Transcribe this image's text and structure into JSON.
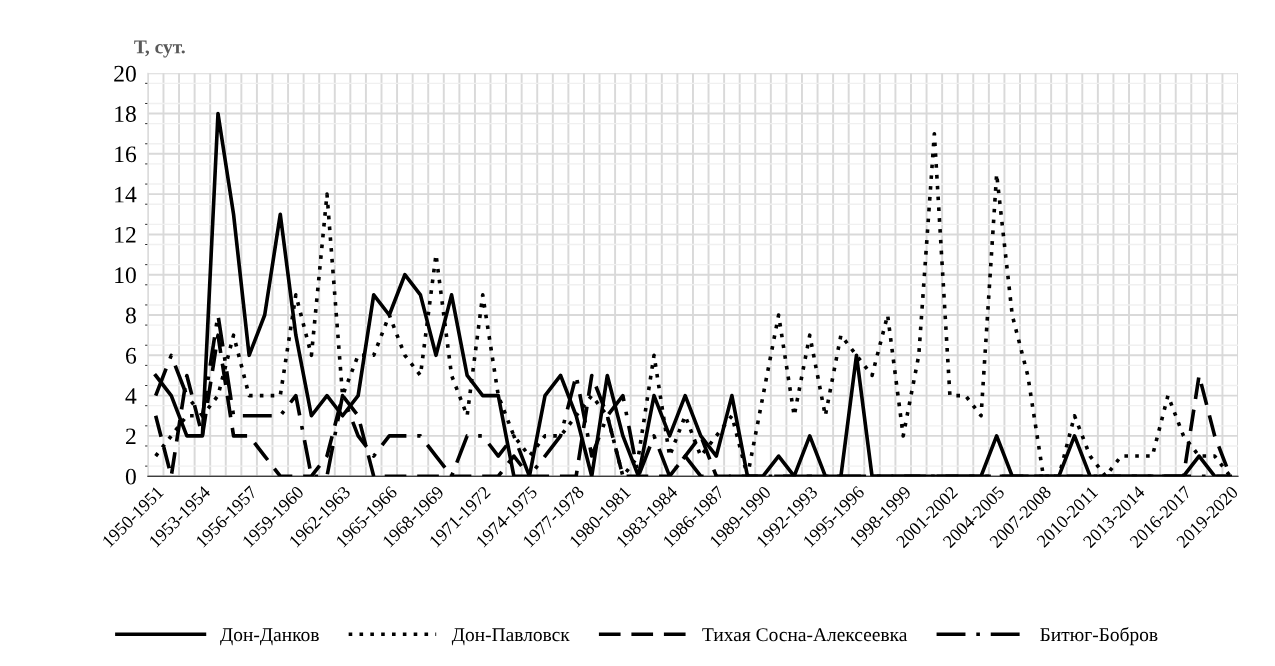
{
  "chart_data": {
    "type": "line",
    "ylabel": "Т, сут.",
    "categories": [
      "1950-1951",
      null,
      null,
      "1953-1954",
      null,
      null,
      "1956-1957",
      null,
      null,
      "1959-1960",
      null,
      null,
      "1962-1963",
      null,
      null,
      "1965-1966",
      null,
      null,
      "1968-1969",
      null,
      null,
      "1971-1972",
      null,
      null,
      "1974-1975",
      null,
      null,
      "1977-1978",
      null,
      null,
      "1980-1981",
      null,
      null,
      "1983-1984",
      null,
      null,
      "1986-1987",
      null,
      null,
      "1989-1990",
      null,
      null,
      "1992-1993",
      null,
      null,
      "1995-1996",
      null,
      null,
      "1998-1999",
      null,
      null,
      "2001-2002",
      null,
      null,
      "2004-2005",
      null,
      null,
      "2007-2008",
      null,
      null,
      "2010-2011",
      null,
      null,
      "2013-2014",
      null,
      null,
      "2016-2017",
      null,
      null,
      "2019-2020"
    ],
    "series": [
      {
        "name": "Дон-Данков",
        "color": "#000000",
        "line_style": "solid",
        "values": [
          5,
          4,
          2,
          2,
          18,
          13,
          6,
          8,
          13,
          7,
          3,
          4,
          3,
          4,
          9,
          8,
          10,
          9,
          6,
          9,
          5,
          4,
          4,
          0,
          0,
          4,
          5,
          3,
          0,
          5,
          2,
          0,
          4,
          2,
          4,
          2,
          1,
          4,
          0,
          0,
          1,
          0,
          2,
          0,
          0,
          6,
          0,
          0,
          0,
          0,
          0,
          0,
          0,
          0,
          2,
          0,
          0,
          0,
          0,
          2,
          0,
          0,
          0,
          0,
          0,
          0,
          0,
          1,
          0,
          0
        ]
      },
      {
        "name": "Дон-Павловск",
        "color": "#000000",
        "line_style": "dotted",
        "values": [
          1,
          2,
          3,
          3,
          4,
          7,
          4,
          4,
          4,
          9,
          6,
          14,
          4,
          6,
          6,
          8,
          6,
          5,
          11,
          5,
          3,
          9,
          4,
          2,
          1,
          2,
          2,
          3,
          4,
          3,
          0,
          1,
          6,
          1,
          3,
          1,
          2,
          3,
          0,
          4,
          8,
          3,
          7,
          3,
          7,
          6,
          5,
          8,
          2,
          6,
          17,
          4,
          4,
          3,
          15,
          8,
          5,
          0,
          0,
          3,
          1,
          0,
          1,
          1,
          1,
          4,
          2,
          1,
          1,
          0
        ]
      },
      {
        "name": "Тихая Сосна-Алексеевка",
        "color": "#000000",
        "line_style": "dashed",
        "values": [
          3,
          0,
          5,
          2,
          7,
          2,
          2,
          1,
          0,
          0,
          0,
          1,
          4,
          3,
          0,
          0,
          0,
          0,
          0,
          0,
          0,
          0,
          0,
          1,
          0,
          0,
          0,
          0,
          5,
          3,
          0,
          0,
          0,
          0,
          1,
          2,
          0,
          0,
          0,
          0,
          0,
          0,
          0,
          0,
          0,
          0,
          0,
          0,
          0,
          0,
          0,
          0,
          0,
          0,
          0,
          0,
          0,
          0,
          0,
          0,
          0,
          0,
          0,
          0,
          0,
          0,
          0,
          5,
          2,
          0
        ]
      },
      {
        "name": "Битюг-Бобров",
        "color": "#000000",
        "line_style": "dashdot",
        "values": [
          4,
          6,
          4,
          3,
          8,
          3,
          3,
          3,
          3,
          4,
          0,
          0,
          4,
          2,
          1,
          2,
          2,
          2,
          1,
          0,
          2,
          2,
          1,
          2,
          0,
          1,
          2,
          5,
          1,
          3,
          4,
          0,
          2,
          0,
          1,
          0,
          0,
          0,
          0,
          0,
          0,
          0,
          0,
          0,
          0,
          0,
          0,
          0,
          0,
          0,
          0,
          0,
          0,
          0,
          0,
          0,
          0,
          0,
          0,
          0,
          0,
          0,
          0,
          0,
          0,
          0,
          0,
          0,
          0,
          0
        ]
      }
    ],
    "ylim": [
      0,
      20
    ],
    "yticks": [
      0,
      2,
      4,
      6,
      8,
      10,
      12,
      14,
      16,
      18,
      20
    ],
    "grid": true,
    "legend": "bottom",
    "marker": "none"
  }
}
